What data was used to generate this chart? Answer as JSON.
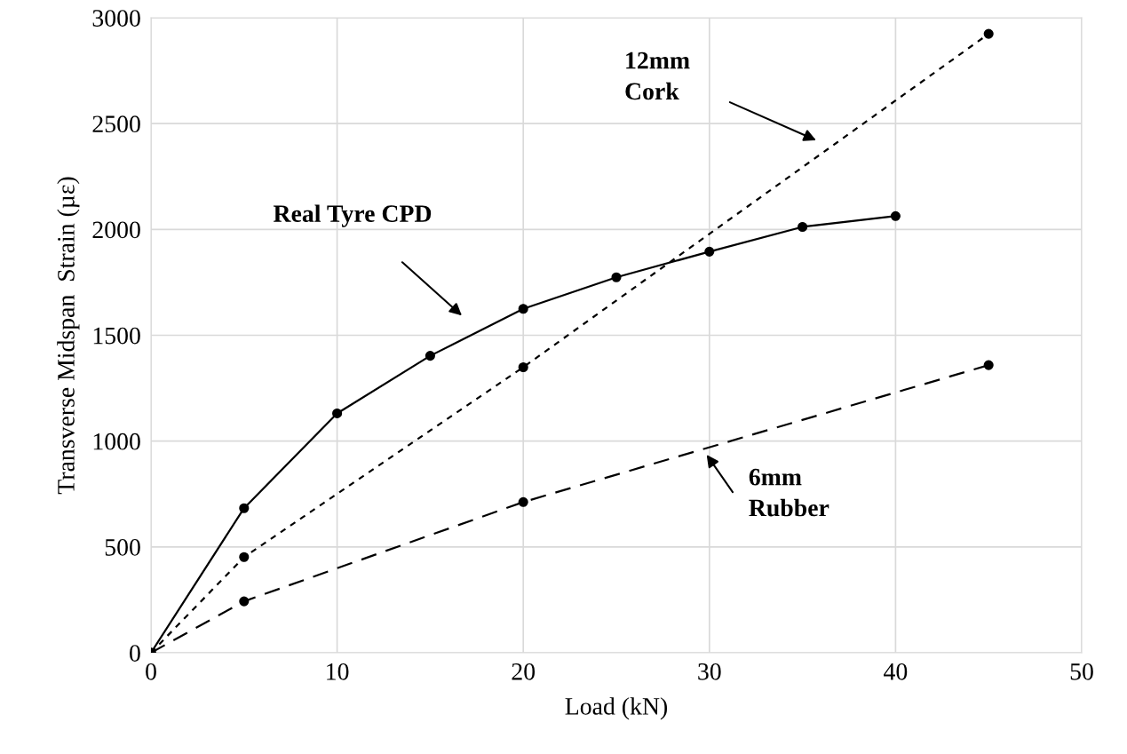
{
  "chart_data": {
    "type": "line",
    "xlabel": "Load (kN)",
    "ylabel": "Transverse Midspan  Strain (µε)",
    "xlim": [
      0,
      50
    ],
    "xticks": [
      0,
      10,
      20,
      30,
      40,
      50
    ],
    "ylim": [
      0,
      3000
    ],
    "yticks": [
      0,
      500,
      1000,
      1500,
      2000,
      2500,
      3000
    ],
    "grid": true,
    "marker": "circle",
    "series": [
      {
        "color": "#000000",
        "line_style": "solid",
        "x": [
          0,
          5,
          10,
          15,
          20,
          25,
          30,
          35,
          40
        ],
        "values": [
          0,
          683,
          1131,
          1403,
          1625,
          1774,
          1895,
          2012,
          2063
        ]
      },
      {
        "color": "#000000",
        "line_style": "dotted",
        "x": [
          0,
          5,
          20,
          45
        ],
        "values": [
          0,
          452,
          1349,
          2924
        ]
      },
      {
        "color": "#000000",
        "line_style": "dashed",
        "x": [
          0,
          5,
          20,
          45
        ],
        "values": [
          0,
          243,
          712,
          1359
        ]
      }
    ],
    "annotations": [
      "Real Tyre CPD",
      "12mm\nCork",
      "6mm\nRubber"
    ]
  }
}
